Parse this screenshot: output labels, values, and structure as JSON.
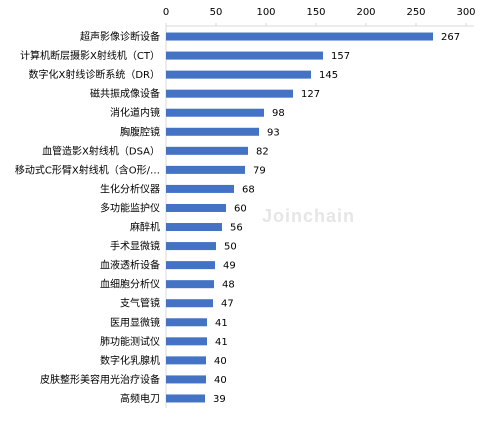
{
  "watermark": "Joinchain",
  "chart_data": {
    "type": "bar",
    "orientation": "horizontal",
    "title": "",
    "xlabel": "",
    "ylabel": "",
    "xlim": [
      0,
      300
    ],
    "x_ticks": [
      0,
      50,
      100,
      150,
      200,
      250,
      300
    ],
    "x_axis_position": "top",
    "grid": false,
    "bar_color": "#4472C4",
    "categories": [
      "超声影像诊断设备",
      "计算机断层摄影X射线机（CT）",
      "数字化X射线诊断系统（DR）",
      "磁共振成像设备",
      "消化道内镜",
      "胸腹腔镜",
      "血管造影X射线机（DSA）",
      "移动式C形臂X射线机（含O形/…",
      "生化分析仪器",
      "多功能监护仪",
      "麻醉机",
      "手术显微镜",
      "血液透析设备",
      "血细胞分析仪",
      "支气管镜",
      "医用显微镜",
      "肺功能测试仪",
      "数字化乳腺机",
      "皮肤整形美容用光治疗设备",
      "高频电刀"
    ],
    "values": [
      267,
      157,
      145,
      127,
      98,
      93,
      82,
      79,
      68,
      60,
      56,
      50,
      49,
      48,
      47,
      41,
      41,
      40,
      40,
      39
    ]
  }
}
